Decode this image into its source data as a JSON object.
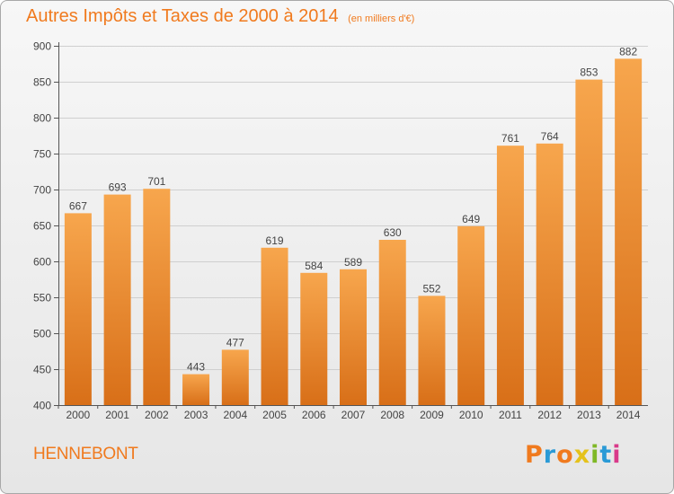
{
  "chart_data": {
    "type": "bar",
    "title": "Autres Impôts et Taxes de 2000 à 2014",
    "unit_note": "(en milliers d'€)",
    "categories": [
      "2000",
      "2001",
      "2002",
      "2003",
      "2004",
      "2005",
      "2006",
      "2007",
      "2008",
      "2009",
      "2010",
      "2011",
      "2012",
      "2013",
      "2014"
    ],
    "values": [
      667,
      693,
      701,
      443,
      477,
      619,
      584,
      589,
      630,
      552,
      649,
      761,
      764,
      853,
      882
    ],
    "ylim": [
      400,
      900
    ],
    "yticks": [
      400,
      450,
      500,
      550,
      600,
      650,
      700,
      750,
      800,
      850,
      900
    ],
    "grid": true,
    "bar_color": "#f28b2c",
    "xlabel": "",
    "ylabel": ""
  },
  "footer": {
    "commune": "HENNEBONT",
    "logo_text": "Proxiti",
    "logo_colors": [
      "#f07a1e",
      "#2a9ad6",
      "#f07a1e",
      "#e5c21b",
      "#7fb826",
      "#2a9ad6",
      "#d93a8a"
    ]
  }
}
